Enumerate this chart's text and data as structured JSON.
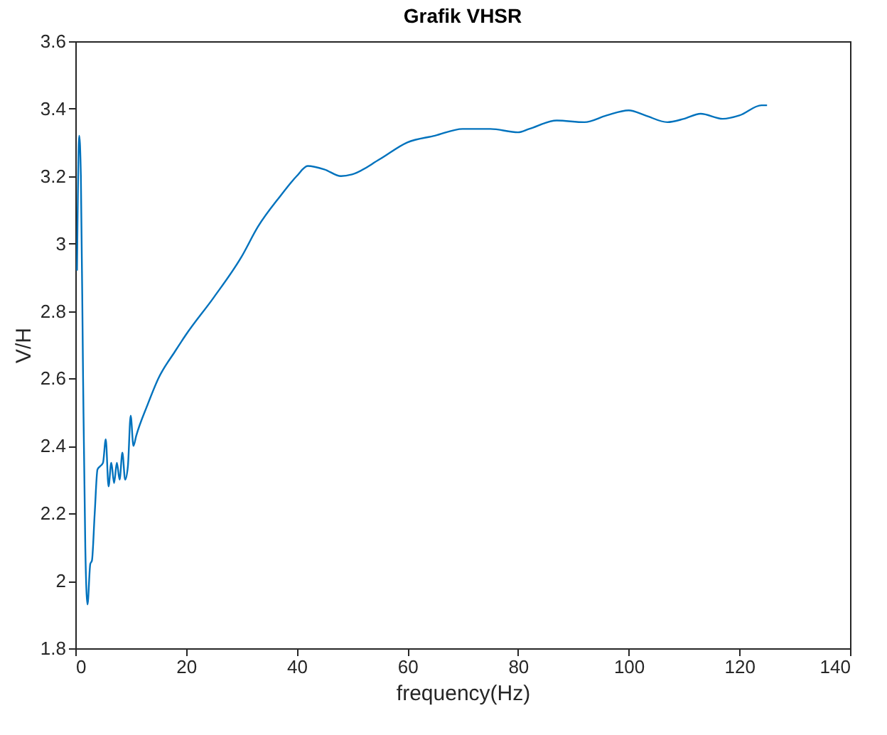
{
  "chart_data": {
    "type": "line",
    "title": "Grafik VHSR",
    "xlabel": "frequency(Hz)",
    "ylabel": "V/H",
    "x": [
      0.3,
      0.7,
      1,
      1.4,
      1.8,
      2.2,
      2.7,
      3,
      3.5,
      4,
      4.5,
      5,
      5.5,
      6,
      6.5,
      7,
      7.5,
      8,
      8.5,
      9,
      9.5,
      10,
      10.5,
      11,
      13,
      15,
      18,
      20,
      25,
      30,
      33,
      37,
      40,
      42,
      45,
      48,
      50,
      55,
      60,
      65,
      70,
      75,
      80,
      82,
      87,
      92,
      96,
      100,
      103,
      107,
      110,
      113,
      117,
      120,
      124,
      125
    ],
    "series": [
      {
        "color": "#0072bd",
        "values": [
          2.92,
          3.32,
          3.2,
          2.6,
          2.1,
          1.93,
          2.05,
          2.06,
          2.2,
          2.33,
          2.34,
          2.35,
          2.42,
          2.28,
          2.35,
          2.29,
          2.35,
          2.3,
          2.38,
          2.3,
          2.34,
          2.49,
          2.4,
          2.43,
          2.52,
          2.6,
          2.68,
          2.73,
          2.84,
          2.96,
          3.05,
          3.14,
          3.2,
          3.23,
          3.22,
          3.2,
          3.205,
          3.25,
          3.3,
          3.32,
          3.34,
          3.34,
          3.33,
          3.34,
          3.365,
          3.36,
          3.38,
          3.395,
          3.38,
          3.36,
          3.37,
          3.385,
          3.37,
          3.38,
          3.41,
          3.41
        ]
      }
    ],
    "xlim": [
      0,
      140
    ],
    "xticks": [
      0,
      20,
      40,
      60,
      80,
      100,
      120,
      140
    ],
    "ylim": [
      1.8,
      3.6
    ],
    "yticks": [
      1.8,
      2,
      2.2,
      2.4,
      2.6,
      2.8,
      3,
      3.2,
      3.4,
      3.6
    ],
    "grid": false
  }
}
